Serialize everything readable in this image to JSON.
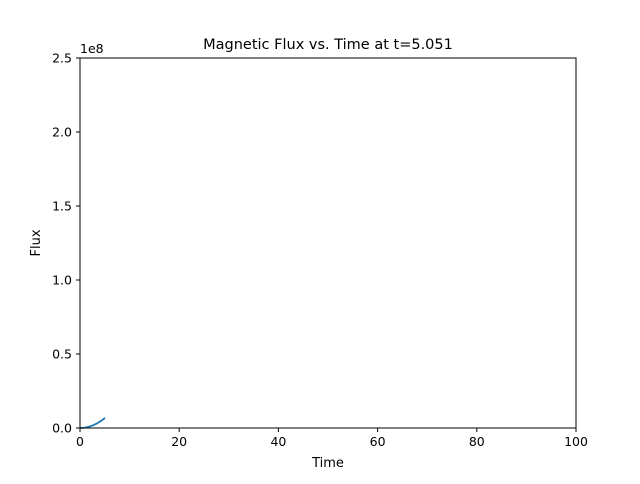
{
  "chart_data": {
    "type": "line",
    "title": "Magnetic Flux vs. Time at t=5.051",
    "xlabel": "Time",
    "ylabel": "Flux",
    "y_offset_label": "1e8",
    "xlim": [
      0,
      100
    ],
    "ylim": [
      0,
      2.5
    ],
    "y_scale": 100000000,
    "x_ticks": [
      0,
      20,
      40,
      60,
      80,
      100
    ],
    "x_tick_labels": [
      "0",
      "20",
      "40",
      "60",
      "80",
      "100"
    ],
    "y_ticks": [
      0,
      0.5,
      1.0,
      1.5,
      2.0,
      2.5
    ],
    "y_tick_labels": [
      "0.0",
      "0.5",
      "1.0",
      "1.5",
      "2.0",
      "2.5"
    ],
    "grid": false,
    "series": [
      {
        "color": "#1f77b4",
        "x": [
          0,
          0.5,
          1.0,
          1.5,
          2.0,
          2.5,
          3.0,
          3.5,
          4.0,
          4.5,
          5.051
        ],
        "y": [
          0,
          0.0007,
          0.0027,
          0.006,
          0.0107,
          0.0167,
          0.024,
          0.0327,
          0.0427,
          0.054,
          0.068
        ]
      }
    ]
  }
}
